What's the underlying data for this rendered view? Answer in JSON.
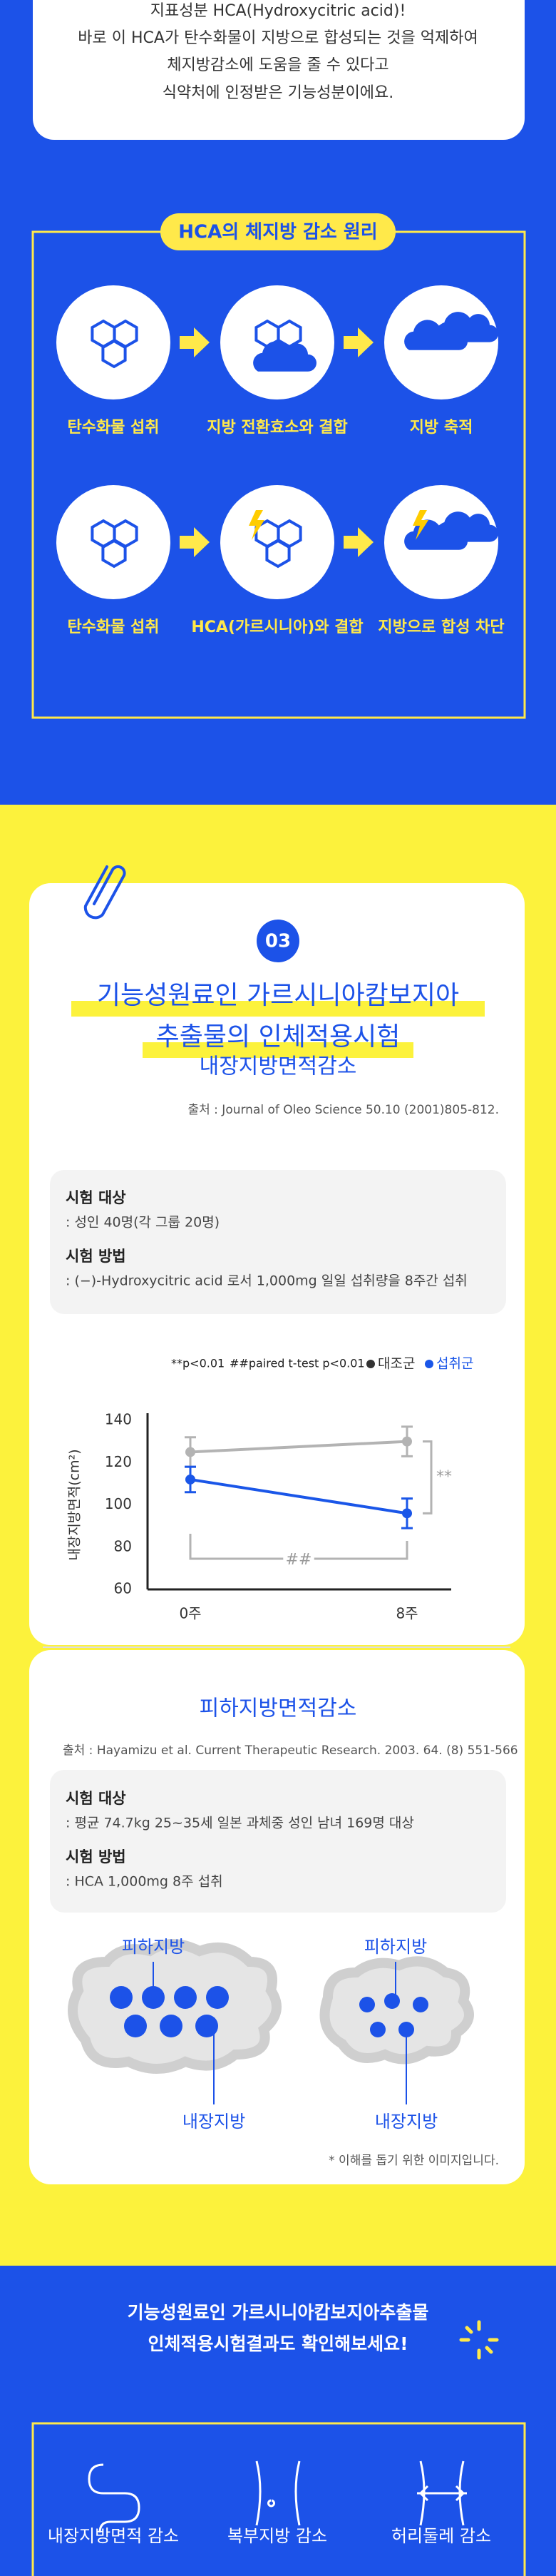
{
  "intro": {
    "lines": [
      "지표성분 HCA(Hydroxycitric acid)!",
      "바로 이 HCA가 탄수화물이 지방으로 합성되는 것을 억제하여",
      "체지방감소에 도움을 줄 수 있다고",
      "식약처에 인정받은 기능성분이에요."
    ]
  },
  "principle": {
    "title": "HCA의 체지방 감소 원리",
    "rows": [
      [
        "탄수화물 섭취",
        "지방 전환효소와 결합",
        "지방 축적"
      ],
      [
        "탄수화물 섭취",
        "HCA(가르시니아)와 결합",
        "지방으로 합성 차단"
      ]
    ]
  },
  "study": {
    "number": "03",
    "title": [
      "기능성원료인 가르시니아캄보지아",
      "추출물의 인체적용시험"
    ]
  },
  "visceral": {
    "heading": "내장지방면적감소",
    "source": "출처 : Journal of Oleo Science 50.10 (2001)805-812.",
    "subject_label": "시험 대상",
    "subject": ": 성인 40명(각 그룹 20명)",
    "method_label": "시험 방법",
    "method": ": (−)-Hydroxycitric acid 로서 1,000mg 일일 섭취량을 8주간 섭취",
    "chart": {
      "type": "line",
      "y_label": "내장지방면적(cm²)",
      "notes": [
        "**p<0.01",
        "##paired t-test p<0.01"
      ],
      "categories": [
        "0주",
        "8주"
      ],
      "series": [
        {
          "name": "대조군",
          "color": "#b3b3b3",
          "values": [
            125,
            130
          ],
          "errors": [
            7,
            7
          ]
        },
        {
          "name": "섭취군",
          "color": "#1a56e8",
          "values": [
            112,
            96
          ],
          "errors": [
            6,
            7
          ]
        }
      ],
      "ylim": [
        60,
        140
      ],
      "yticks": [
        60,
        80,
        100,
        120,
        140
      ],
      "bracket_labels": [
        "##",
        "**"
      ]
    }
  },
  "subcutaneous": {
    "heading": "피하지방면적감소",
    "source": "출처 : Hayamizu et al. Current Therapeutic Research. 2003. 64. (8) 551-566",
    "subject_label": "시험 대상",
    "subject": ": 평균 74.7kg 25~35세 일본 과체중 성인 남녀 169명 대상",
    "method_label": "시험 방법",
    "method": ": HCA 1,000mg 8주 섭취",
    "labels": [
      "피하지방",
      "내장지방",
      "피하지방",
      "내장지방"
    ],
    "note": "* 이해를 돕기 위한 이미지입니다."
  },
  "outro": {
    "lines": [
      "기능성원료인 가르시니아캄보지아추출물",
      "인체적용시험결과도 확인해보세요!"
    ],
    "items": [
      "내장지방면적 감소",
      "복부지방 감소",
      "허리둘레 감소"
    ]
  }
}
